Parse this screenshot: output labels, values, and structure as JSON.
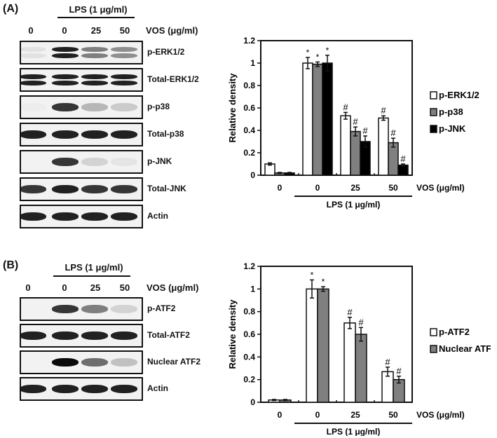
{
  "panel_a": {
    "label": "(A)",
    "lps_header": "LPS (1 μg/ml)",
    "lane_labels": [
      "0",
      "0",
      "25",
      "50"
    ],
    "vos_label": "VOS (μg/ml)",
    "blots": [
      {
        "name": "p-ERK1/2",
        "intensity": [
          0.25,
          0.95,
          0.7,
          0.65
        ],
        "double": true
      },
      {
        "name": "Total-ERK1/2",
        "intensity": [
          0.95,
          0.95,
          0.95,
          0.95
        ],
        "double": true
      },
      {
        "name": "p-p38",
        "intensity": [
          0.05,
          0.9,
          0.5,
          0.4
        ],
        "double": false
      },
      {
        "name": "Total-p38",
        "intensity": [
          0.95,
          0.95,
          0.95,
          0.95
        ],
        "double": false
      },
      {
        "name": "p-JNK",
        "intensity": [
          0.0,
          0.9,
          0.35,
          0.2
        ],
        "double": false
      },
      {
        "name": "Total-JNK",
        "intensity": [
          0.9,
          0.95,
          0.9,
          0.9
        ],
        "double": false
      },
      {
        "name": "Actin",
        "intensity": [
          0.95,
          0.95,
          0.95,
          0.95
        ],
        "double": false
      }
    ]
  },
  "panel_b": {
    "label": "(B)",
    "lps_header": "LPS (1 μg/ml)",
    "lane_labels": [
      "0",
      "0",
      "25",
      "50"
    ],
    "vos_label": "VOS (μg/ml)",
    "blots": [
      {
        "name": "p-ATF2",
        "intensity": [
          0.0,
          0.9,
          0.7,
          0.35
        ],
        "double": false
      },
      {
        "name": "Total-ATF2",
        "intensity": [
          0.95,
          0.95,
          0.95,
          0.95
        ],
        "double": false
      },
      {
        "name": "Nuclear ATF2",
        "intensity": [
          0.0,
          1.0,
          0.75,
          0.45
        ],
        "double": false
      },
      {
        "name": "Actin",
        "intensity": [
          0.95,
          0.95,
          0.95,
          0.95
        ],
        "double": false
      }
    ]
  },
  "chart_data": [
    {
      "type": "bar",
      "title": "",
      "ylabel": "Relative density",
      "xlabel": "VOS (μg/ml)",
      "group_label": "LPS (1 μg/ml)",
      "categories": [
        "0",
        "0",
        "25",
        "50"
      ],
      "ylim": [
        0,
        1.2
      ],
      "yticks": [
        "0",
        "0.2",
        "0.4",
        "0.6",
        "0.8",
        "1",
        "1.2"
      ],
      "legend_position": "right",
      "series": [
        {
          "name": "p-ERK1/2",
          "color": "#ffffff",
          "values": [
            0.1,
            1.0,
            0.53,
            0.51
          ],
          "errors": [
            0.01,
            0.05,
            0.03,
            0.02
          ],
          "marks": [
            "",
            "*",
            "#",
            "#"
          ]
        },
        {
          "name": "p-p38",
          "color": "#808080",
          "values": [
            0.02,
            0.99,
            0.39,
            0.29
          ],
          "errors": [
            0.005,
            0.02,
            0.04,
            0.04
          ],
          "marks": [
            "",
            "*",
            "#",
            "#"
          ]
        },
        {
          "name": "p-JNK",
          "color": "#000000",
          "values": [
            0.02,
            1.0,
            0.3,
            0.09
          ],
          "errors": [
            0.005,
            0.07,
            0.05,
            0.01
          ],
          "marks": [
            "",
            "*",
            "#",
            "#"
          ]
        }
      ]
    },
    {
      "type": "bar",
      "title": "",
      "ylabel": "Relative density",
      "xlabel": "VOS (μg/ml)",
      "group_label": "LPS (1 μg/ml)",
      "categories": [
        "0",
        "0",
        "25",
        "50"
      ],
      "ylim": [
        0,
        1.2
      ],
      "yticks": [
        "0",
        "0.2",
        "0.4",
        "0.6",
        "0.8",
        "1",
        "1.2"
      ],
      "legend_position": "right",
      "series": [
        {
          "name": "p-ATF2",
          "color": "#ffffff",
          "values": [
            0.02,
            1.0,
            0.7,
            0.27
          ],
          "errors": [
            0.005,
            0.08,
            0.05,
            0.04
          ],
          "marks": [
            "",
            "*",
            "#",
            "#"
          ]
        },
        {
          "name": "Nuclear ATF2",
          "color": "#808080",
          "values": [
            0.02,
            1.0,
            0.6,
            0.2
          ],
          "errors": [
            0.005,
            0.02,
            0.06,
            0.03
          ],
          "marks": [
            "",
            "*",
            "#",
            "#"
          ]
        }
      ]
    }
  ]
}
